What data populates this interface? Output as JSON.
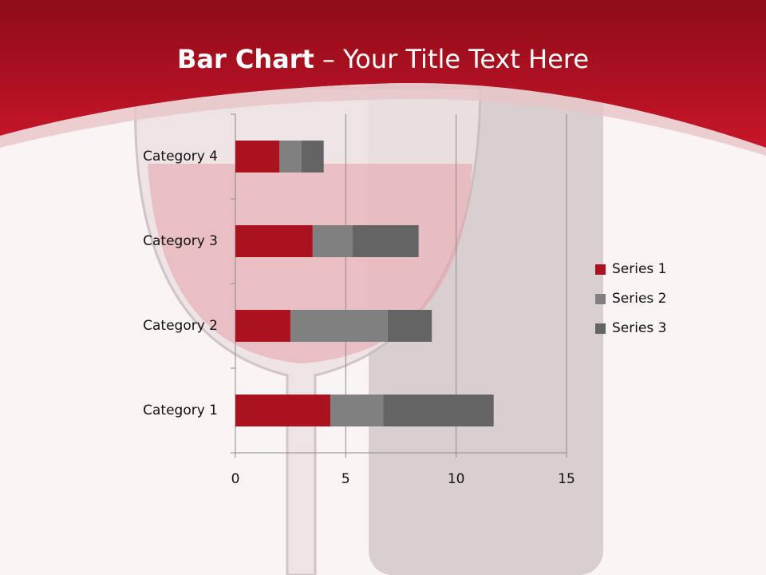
{
  "chart_data": {
    "type": "stacked-bar-horizontal",
    "title": [
      "Bar Chart",
      "– Your Title Text Here"
    ],
    "categories": [
      "Category 1",
      "Category 2",
      "Category 3",
      "Category 4"
    ],
    "series": [
      {
        "name": "Series 1",
        "color": "#a9121e",
        "values": [
          4.3,
          2.5,
          3.5,
          2
        ]
      },
      {
        "name": "Series 2",
        "color": "#808080",
        "values": [
          2.4,
          4.4,
          1.8,
          1
        ]
      },
      {
        "name": "Series 3",
        "color": "#646464",
        "values": [
          5,
          2,
          3,
          1
        ]
      }
    ],
    "xlim": [
      0,
      15
    ],
    "xticks": [
      0,
      5,
      10,
      15
    ],
    "grid": true,
    "legend": "right"
  }
}
